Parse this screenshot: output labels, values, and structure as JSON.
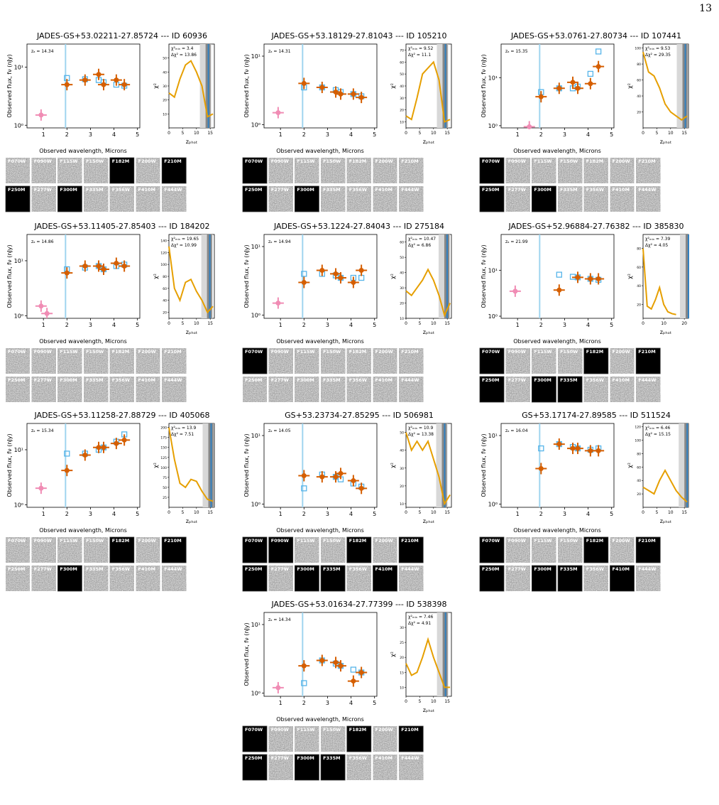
{
  "page_number": "13",
  "labels": {
    "flux": "Observed flux, fν (nJy)",
    "wavelength": "Observed wavelength, Microns",
    "chi2": "χ²",
    "zphot": "zₚₕₒₜ"
  },
  "filters": [
    "F070W",
    "F090W",
    "F115W",
    "F150W",
    "F182M",
    "F200W",
    "F210M",
    "F250M",
    "F277W",
    "F300M",
    "F335M",
    "F356W",
    "F410M",
    "F444W"
  ],
  "wavelengths": [
    0.9,
    1.15,
    1.5,
    2.0,
    2.77,
    3.35,
    3.56,
    4.1,
    4.44
  ],
  "xlim": [
    0.3,
    5.1
  ],
  "xticks": [
    1,
    2,
    3,
    4,
    5
  ],
  "chi2_z": [
    0,
    2,
    4,
    6,
    8,
    10,
    12,
    14,
    16
  ],
  "panels": [
    {
      "title": "JADES-GS+53.02211-27.85724 --- ID 60936",
      "z_a": 14.34,
      "za_label": "zₐ = 14.34",
      "chi2_min": "χ²ₘᵢₙ = 3.4",
      "delta_chi2": "Δχ² = 13.86",
      "ylim": [
        0.9,
        25
      ],
      "yticks": [
        {
          "value": 1,
          "label": "10⁰"
        },
        {
          "value": 10,
          "label": "10¹"
        }
      ],
      "flux": [
        1.5,
        null,
        null,
        5,
        6,
        7.5,
        5,
        6,
        5
      ],
      "model": [
        null,
        null,
        null,
        6.5,
        6.2,
        6,
        5.5,
        5,
        4.8
      ],
      "chi2": [
        25,
        22,
        35,
        45,
        48,
        40,
        30,
        8,
        10
      ],
      "chi2_xlim": [
        0,
        16.5
      ],
      "chi2_xticks": [
        0,
        5,
        10,
        15
      ],
      "chi2_ylim": [
        0,
        60
      ],
      "chi2_yticks": [
        10,
        20,
        30,
        40,
        50
      ],
      "blank": [
        4,
        6,
        7,
        9
      ]
    },
    {
      "title": "JADES-GS+53.18129-27.81043 --- ID 105210",
      "z_a": 14.31,
      "za_label": "zₐ = 14.31",
      "chi2_min": "χ²ₘᵢₙ = 9.52",
      "delta_chi2": "Δχ² = 11.1",
      "ylim": [
        0.9,
        15
      ],
      "yticks": [
        {
          "value": 1,
          "label": "10⁰"
        },
        {
          "value": 10,
          "label": "10¹"
        }
      ],
      "flux": [
        1.5,
        null,
        null,
        4,
        3.5,
        3,
        2.8,
        2.8,
        2.5
      ],
      "model": [
        null,
        null,
        null,
        3.5,
        3.5,
        3.2,
        3,
        2.8,
        2.6
      ],
      "chi2": [
        15,
        12,
        30,
        50,
        55,
        60,
        45,
        10,
        12
      ],
      "chi2_xlim": [
        0,
        16.5
      ],
      "chi2_xticks": [
        0,
        5,
        10,
        15
      ],
      "chi2_ylim": [
        5,
        75
      ],
      "chi2_yticks": [
        10,
        20,
        30,
        40,
        50,
        60,
        70
      ],
      "blank": [
        0,
        7,
        9
      ]
    },
    {
      "title": "JADES-GS+53.0761-27.80734 --- ID 107441",
      "z_a": 15.35,
      "za_label": "zₐ = 15.35",
      "chi2_min": "χ²ₘᵢₙ = 9.53",
      "delta_chi2": "Δχ² = 29.35",
      "ylim": [
        0.9,
        50
      ],
      "yticks": [
        {
          "value": 1,
          "label": "10⁰"
        },
        {
          "value": 10,
          "label": "10¹"
        }
      ],
      "flux": [
        null,
        null,
        0.95,
        4,
        6,
        8,
        6,
        7.5,
        17
      ],
      "model": [
        null,
        null,
        null,
        5,
        6,
        6,
        6.5,
        12,
        35
      ],
      "chi2": [
        95,
        70,
        65,
        50,
        30,
        20,
        15,
        10,
        15
      ],
      "chi2_xlim": [
        0,
        16.5
      ],
      "chi2_xticks": [
        0,
        5,
        10,
        15
      ],
      "chi2_ylim": [
        0,
        105
      ],
      "chi2_yticks": [
        20,
        40,
        60,
        80,
        100
      ],
      "blank": [
        0,
        7,
        9
      ]
    },
    {
      "title": "JADES-GS+53.11405-27.85403 --- ID 184202",
      "z_a": 14.86,
      "za_label": "zₐ = 14.86",
      "chi2_min": "χ²ₘᵢₙ = 19.65",
      "delta_chi2": "Δχ² = 10.99",
      "ylim": [
        0.9,
        30
      ],
      "yticks": [
        {
          "value": 1,
          "label": "10⁰"
        },
        {
          "value": 10,
          "label": "10¹"
        }
      ],
      "flux": [
        1.5,
        1.1,
        null,
        6,
        8,
        8,
        7,
        9,
        8
      ],
      "model": [
        null,
        null,
        null,
        7,
        7.5,
        8,
        7,
        8,
        8.5
      ],
      "chi2": [
        130,
        60,
        40,
        70,
        75,
        55,
        40,
        20,
        30
      ],
      "chi2_xlim": [
        0,
        16.5
      ],
      "chi2_xticks": [
        0,
        5,
        10,
        15
      ],
      "chi2_ylim": [
        10,
        150
      ],
      "chi2_yticks": [
        20,
        40,
        60,
        80,
        100,
        120,
        140
      ],
      "blank": []
    },
    {
      "title": "JADES-GS+53.1224-27.84043 --- ID 275184",
      "z_a": 14.94,
      "za_label": "zₐ = 14.94",
      "chi2_min": "χ²ₘᵢₙ = 10.47",
      "delta_chi2": "Δχ² = 6.86",
      "ylim": [
        0.9,
        15
      ],
      "yticks": [
        {
          "value": 1,
          "label": "10⁰"
        },
        {
          "value": 10,
          "label": "10¹"
        }
      ],
      "flux": [
        1.5,
        null,
        null,
        3,
        4.5,
        4,
        3.5,
        3,
        4.5
      ],
      "model": [
        null,
        null,
        null,
        4,
        4,
        3.8,
        3.5,
        3.5,
        3.5
      ],
      "chi2": [
        28,
        25,
        30,
        35,
        42,
        35,
        25,
        12,
        20
      ],
      "chi2_xlim": [
        0,
        16.5
      ],
      "chi2_xticks": [
        0,
        5,
        10,
        15
      ],
      "chi2_ylim": [
        10,
        65
      ],
      "chi2_yticks": [
        10,
        20,
        30,
        40,
        50,
        60
      ],
      "blank": [
        0
      ]
    },
    {
      "title": "JADES-GS+52.96884-27.76382 --- ID 385830",
      "z_a": 21.99,
      "za_label": "zₐ = 21.99",
      "chi2_min": "χ²ₘᵢₙ = 7.39",
      "delta_chi2": "Δχ² = 4.05",
      "ylim": [
        0.9,
        60
      ],
      "yticks": [
        {
          "value": 1,
          "label": "10⁰"
        },
        {
          "value": 10,
          "label": "10¹"
        }
      ],
      "flux": [
        3.5,
        null,
        null,
        null,
        3.7,
        null,
        7,
        6.5,
        6.5
      ],
      "model": [
        null,
        null,
        null,
        null,
        8,
        7.2,
        7,
        6.5,
        6.2
      ],
      "chi2": [
        80,
        18,
        15,
        25,
        38,
        20,
        12,
        10,
        9
      ],
      "chi2_xlim": [
        0,
        22
      ],
      "chi2_xticks": [
        0,
        10,
        20
      ],
      "chi2_ylim": [
        5,
        95
      ],
      "chi2_yticks": [
        20,
        40,
        60,
        80
      ],
      "blank": [
        0,
        4,
        6,
        7,
        9,
        10
      ]
    },
    {
      "title": "JADES-GS+53.11258-27.88729 --- ID 405068",
      "z_a": 15.34,
      "za_label": "zₐ = 15.34",
      "chi2_min": "χ²ₘᵢₙ = 13.9",
      "delta_chi2": "Δχ² = 7.51",
      "ylim": [
        0.9,
        30
      ],
      "yticks": [
        {
          "value": 1,
          "label": "10⁰"
        },
        {
          "value": 10,
          "label": "10¹"
        }
      ],
      "flux": [
        2,
        null,
        null,
        4.2,
        8,
        11,
        11,
        13,
        15
      ],
      "model": [
        null,
        null,
        null,
        8.5,
        8.5,
        10,
        11,
        14,
        19
      ],
      "chi2": [
        200,
        120,
        60,
        50,
        70,
        65,
        40,
        20,
        15
      ],
      "chi2_xlim": [
        0,
        16.5
      ],
      "chi2_xticks": [
        0,
        5,
        10,
        15
      ],
      "chi2_ylim": [
        0,
        210
      ],
      "chi2_yticks": [
        25,
        50,
        75,
        100,
        125,
        150,
        175,
        200
      ],
      "blank": [
        4,
        6,
        9
      ]
    },
    {
      "title": "GS+53.23734-27.85295 --- ID 506981",
      "z_a": 14.05,
      "za_label": "zₐ = 14.05",
      "chi2_min": "χ²ₘᵢₙ = 10.9",
      "delta_chi2": "Δχ² = 13.38",
      "ylim": [
        0.9,
        15
      ],
      "yticks": [
        {
          "value": 1,
          "label": "10⁰"
        },
        {
          "value": 10,
          "label": "10¹"
        }
      ],
      "flux": [
        null,
        null,
        null,
        2.6,
        2.5,
        2.5,
        2.8,
        2.2,
        1.7
      ],
      "model": [
        null,
        null,
        null,
        1.7,
        2.7,
        2.5,
        2.3,
        2,
        1.8
      ],
      "chi2": [
        50,
        40,
        45,
        40,
        45,
        35,
        25,
        10,
        15
      ],
      "chi2_xlim": [
        0,
        16.5
      ],
      "chi2_xticks": [
        0,
        5,
        10,
        15
      ],
      "chi2_ylim": [
        8,
        55
      ],
      "chi2_yticks": [
        10,
        20,
        30,
        40,
        50
      ],
      "blank": [
        0,
        1,
        4,
        6,
        7,
        9,
        10,
        12
      ]
    },
    {
      "title": "GS+53.17174-27.89585 --- ID 511524",
      "z_a": 16.04,
      "za_label": "zₐ = 16.04",
      "chi2_min": "χ²ₘᵢₙ = 6.46",
      "delta_chi2": "Δχ² = 15.15",
      "ylim": [
        0.9,
        15
      ],
      "yticks": [
        {
          "value": 1,
          "label": "10⁰"
        },
        {
          "value": 10,
          "label": "10¹"
        }
      ],
      "flux": [
        null,
        null,
        null,
        3.3,
        7.5,
        6.5,
        6.5,
        6,
        6
      ],
      "model": [
        null,
        null,
        null,
        6.5,
        7.5,
        6.8,
        6.5,
        6.2,
        6.5
      ],
      "chi2": [
        30,
        25,
        20,
        40,
        55,
        40,
        25,
        15,
        8
      ],
      "chi2_xlim": [
        0,
        16.5
      ],
      "chi2_xticks": [
        0,
        5,
        10,
        15
      ],
      "chi2_ylim": [
        0,
        125
      ],
      "chi2_yticks": [
        20,
        40,
        60,
        80,
        100,
        120
      ],
      "blank": [
        0,
        4,
        6,
        7,
        9,
        10,
        12
      ]
    },
    {
      "title": "JADES-GS+53.01634-27.77399 --- ID 538398",
      "z_a": 14.34,
      "za_label": "zₐ = 14.34",
      "chi2_min": "χ²ₘᵢₙ = 7.46",
      "delta_chi2": "Δχ² = 4.91",
      "ylim": [
        0.9,
        15
      ],
      "yticks": [
        {
          "value": 1,
          "label": "10⁰"
        },
        {
          "value": 10,
          "label": "10¹"
        }
      ],
      "flux": [
        1.2,
        null,
        null,
        2.5,
        3,
        2.8,
        2.5,
        1.5,
        2
      ],
      "model": [
        null,
        null,
        null,
        1.4,
        3,
        2.7,
        2.5,
        2.2,
        2
      ],
      "chi2": [
        18,
        14,
        15,
        20,
        26,
        20,
        15,
        10,
        10
      ],
      "chi2_xlim": [
        0,
        16.5
      ],
      "chi2_xticks": [
        0,
        5,
        10,
        15
      ],
      "chi2_ylim": [
        7,
        35
      ],
      "chi2_yticks": [
        10,
        15,
        20,
        25,
        30
      ],
      "blank": [
        0,
        4,
        6,
        7,
        9,
        10
      ]
    }
  ]
}
